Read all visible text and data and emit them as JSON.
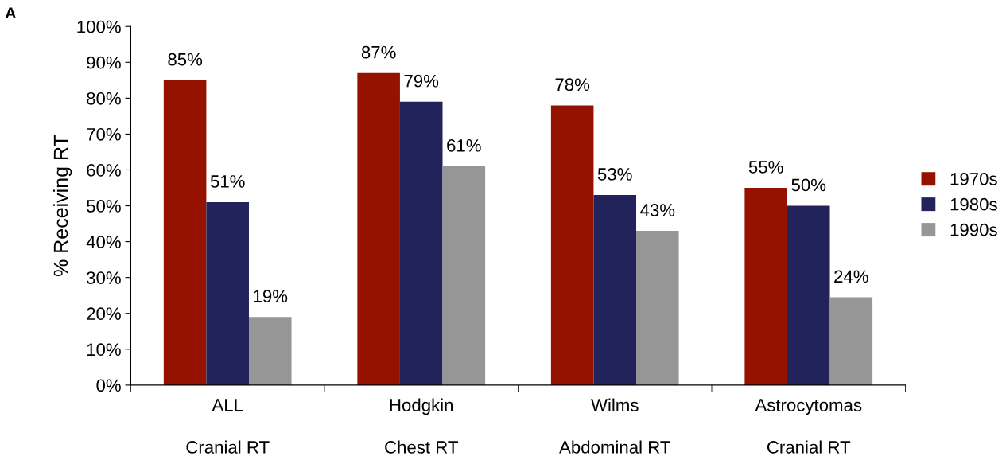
{
  "chart_data": {
    "type": "bar",
    "ylabel": "% Receiving RT",
    "categories": [
      "ALL\nCranial RT",
      "Hodgkin\nChest RT",
      "Wilms\nAbdominal RT",
      "Astrocytomas\nCranial RT"
    ],
    "series": [
      {
        "name": "1970s",
        "color": "#961200",
        "values": [
          85,
          87,
          78,
          55
        ],
        "value_labels": [
          "85%",
          "87%",
          "78%",
          "55%"
        ]
      },
      {
        "name": "1980s",
        "color": "#21235a",
        "values": [
          51,
          79,
          53,
          50
        ],
        "value_labels": [
          "51%",
          "79%",
          "53%",
          "50%"
        ]
      },
      {
        "name": "1990s",
        "color": "#969696",
        "values": [
          19,
          61,
          43,
          24.5
        ],
        "value_labels": [
          "19%",
          "61%",
          "43%",
          "24%"
        ]
      }
    ],
    "ylim": [
      0,
      100
    ],
    "yticks": [
      {
        "value": 0,
        "label": "0%"
      },
      {
        "value": 10,
        "label": "10%"
      },
      {
        "value": 20,
        "label": "20%"
      },
      {
        "value": 30,
        "label": "30%"
      },
      {
        "value": 40,
        "label": "40%"
      },
      {
        "value": 50,
        "label": "50%"
      },
      {
        "value": 60,
        "label": "60%"
      },
      {
        "value": 70,
        "label": "70%"
      },
      {
        "value": 80,
        "label": "80%"
      },
      {
        "value": 90,
        "label": "90%"
      },
      {
        "value": 100,
        "label": "100%"
      }
    ],
    "grid": false,
    "legend": "right",
    "annotations": [
      "A"
    ]
  }
}
